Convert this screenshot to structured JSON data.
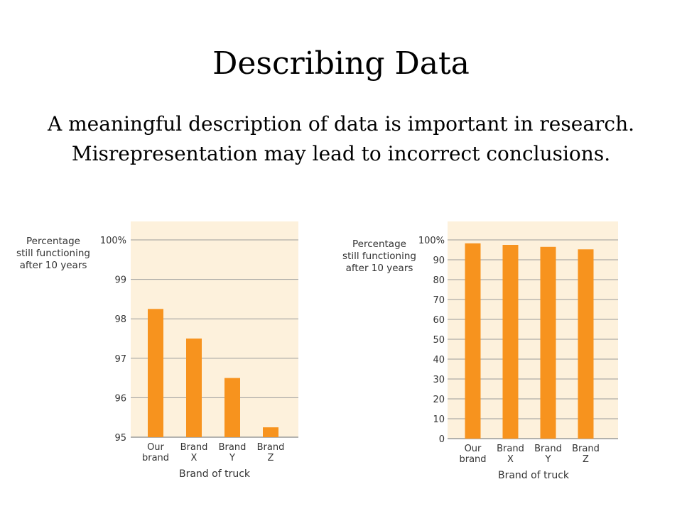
{
  "slide": {
    "title": "Describing Data",
    "subtitle": "A meaningful description of data is important in research. Misrepresentation may lead to incorrect conclusions."
  },
  "colors": {
    "bar": "#F7931E",
    "plot_bg": "#FDF1DC",
    "grid": "#9A9A9A"
  },
  "chart_data": [
    {
      "type": "bar",
      "ylabel": [
        "Percentage",
        "still functioning",
        "after 10 years"
      ],
      "xlabel": "Brand of truck",
      "categories": [
        [
          "Our",
          "brand"
        ],
        [
          "Brand",
          "X"
        ],
        [
          "Brand",
          "Y"
        ],
        [
          "Brand",
          "Z"
        ]
      ],
      "values": [
        98.25,
        97.5,
        96.5,
        95.25
      ],
      "ylim": [
        95,
        100
      ],
      "yticks": [
        95,
        96,
        97,
        98,
        99,
        100
      ],
      "yticklabels": [
        "95",
        "96",
        "97",
        "98",
        "99",
        "100%"
      ],
      "grid": true
    },
    {
      "type": "bar",
      "ylabel": [
        "Percentage",
        "still functioning",
        "after 10 years"
      ],
      "xlabel": "Brand of truck",
      "categories": [
        [
          "Our",
          "brand"
        ],
        [
          "Brand",
          "X"
        ],
        [
          "Brand",
          "Y"
        ],
        [
          "Brand",
          "Z"
        ]
      ],
      "values": [
        98.25,
        97.5,
        96.5,
        95.25
      ],
      "ylim": [
        0,
        100
      ],
      "yticks": [
        0,
        10,
        20,
        30,
        40,
        50,
        60,
        70,
        80,
        90,
        100
      ],
      "yticklabels": [
        "0",
        "10",
        "20",
        "30",
        "40",
        "50",
        "60",
        "70",
        "80",
        "90",
        "100%"
      ],
      "grid": true
    }
  ]
}
